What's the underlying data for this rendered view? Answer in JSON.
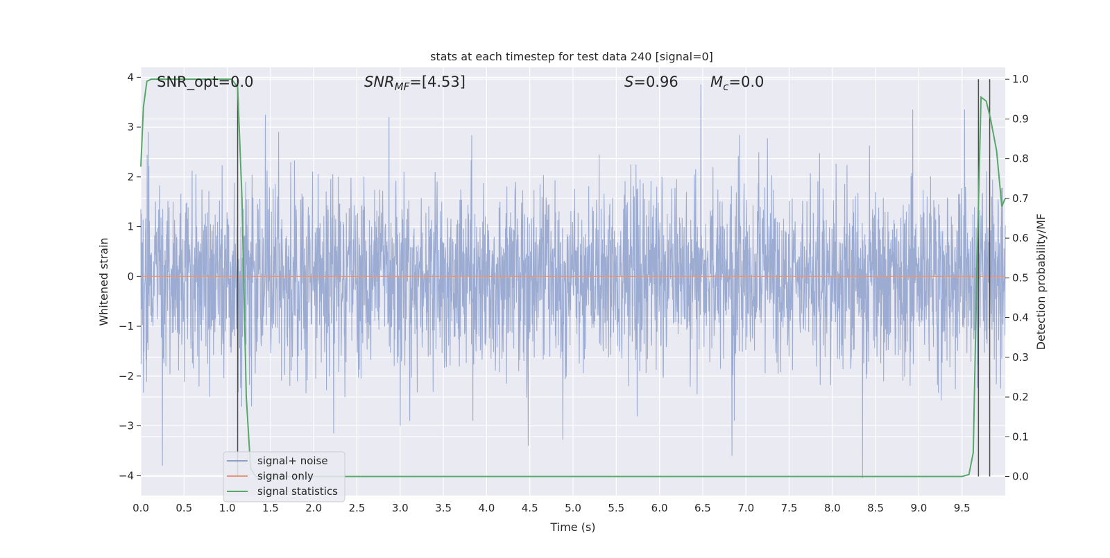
{
  "chart_data": {
    "type": "line",
    "title": "stats at each timestep for test data 240 [signal=0]",
    "xlabel": "Time (s)",
    "ylabel": "Whitened strain",
    "y2label": "Detection probability/MF",
    "xlim": [
      0.0,
      10.0
    ],
    "ylim": [
      -4.4,
      4.2
    ],
    "y2lim": [
      -0.048,
      1.03
    ],
    "xticks": [
      "0.0",
      "0.5",
      "1.0",
      "1.5",
      "2.0",
      "2.5",
      "3.0",
      "3.5",
      "4.0",
      "4.5",
      "5.0",
      "5.5",
      "6.0",
      "6.5",
      "7.0",
      "7.5",
      "8.0",
      "8.5",
      "9.0",
      "9.5"
    ],
    "yticks": [
      "4",
      "3",
      "2",
      "1",
      "0",
      "−1",
      "−2",
      "−3",
      "−4"
    ],
    "y2ticks": [
      "1.0",
      "0.9",
      "0.8",
      "0.7",
      "0.6",
      "0.5",
      "0.4",
      "0.3",
      "0.2",
      "0.1",
      "0.0"
    ],
    "grid": true,
    "legend_position": "lower-left",
    "annotations": {
      "snr_opt": "SNR_opt=0.0",
      "snr_mf_main": "SNR",
      "snr_mf_sub": "MF",
      "snr_mf_value": "=[4.53]",
      "s_label": "S",
      "s_value": "=0.96",
      "mc_main": "M",
      "mc_sub": "c",
      "mc_value": "=0.0"
    },
    "series": [
      {
        "name": "signal+ noise",
        "color": "#8da0cb",
        "axis": "left",
        "kind": "noise",
        "envelope_note": "dense whitened noise roughly between -2 and 2.5, peaks up to ~3.8 and down to ~-4.0",
        "extremes": [
          {
            "x": 6.48,
            "y": 3.85
          },
          {
            "x": 2.87,
            "y": 3.2
          },
          {
            "x": 1.44,
            "y": 3.25
          },
          {
            "x": 8.93,
            "y": 3.35
          },
          {
            "x": 9.53,
            "y": 3.35
          },
          {
            "x": 0.25,
            "y": -3.8
          },
          {
            "x": 4.48,
            "y": -3.4
          },
          {
            "x": 4.88,
            "y": -3.28
          },
          {
            "x": 6.84,
            "y": -3.6
          },
          {
            "x": 8.35,
            "y": -4.05
          },
          {
            "x": 2.23,
            "y": -3.15
          },
          {
            "x": 3.0,
            "y": -3.0
          }
        ]
      },
      {
        "name": "signal only",
        "color": "#e8967a",
        "axis": "left",
        "x": [
          0.0,
          10.0
        ],
        "y": [
          0.0,
          0.0
        ]
      },
      {
        "name": "signal statistics",
        "color": "#55a868",
        "axis": "right",
        "x": [
          0.0,
          0.03,
          0.07,
          0.12,
          0.2,
          1.05,
          1.12,
          1.17,
          1.22,
          1.27,
          1.33,
          1.4,
          2.0,
          9.5,
          9.58,
          9.63,
          9.67,
          9.72,
          9.78,
          9.83,
          9.9,
          9.96,
          10.0
        ],
        "y": [
          0.78,
          0.93,
          0.995,
          1.0,
          1.0,
          1.0,
          0.98,
          0.7,
          0.2,
          0.02,
          0.0,
          0.0,
          0.0,
          0.0,
          0.005,
          0.06,
          0.5,
          0.955,
          0.945,
          0.9,
          0.82,
          0.68,
          0.7
        ]
      }
    ],
    "vertical_lines": [
      {
        "x": 1.12,
        "y2_top": 1.0,
        "y2_bottom": 0.0,
        "color": "#4d4d4d"
      },
      {
        "x": 9.69,
        "y2_top": 1.0,
        "y2_bottom": 0.0,
        "color": "#4d4d4d"
      },
      {
        "x": 9.82,
        "y2_top": 1.0,
        "y2_bottom": 0.0,
        "color": "#4d4d4d"
      }
    ]
  }
}
